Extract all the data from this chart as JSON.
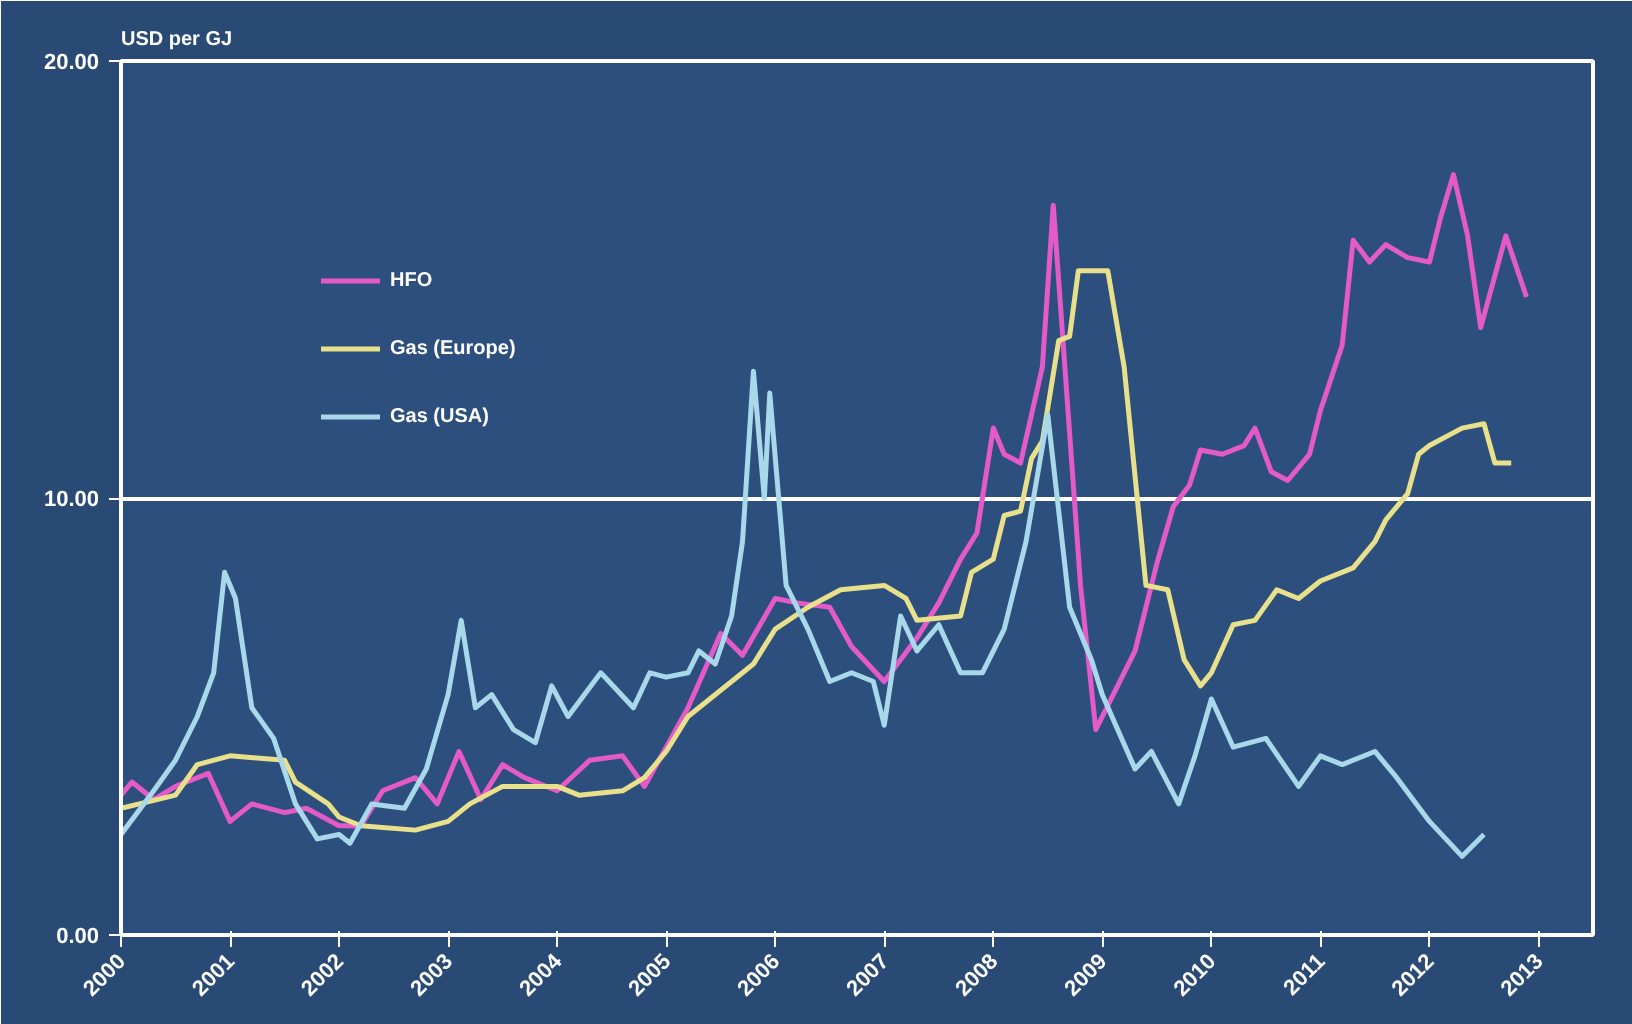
{
  "chart_data": {
    "type": "line",
    "ylabel": "USD per GJ",
    "xlim": [
      2000,
      2013.5
    ],
    "xticks": [
      2000,
      2001,
      2002,
      2003,
      2004,
      2005,
      2006,
      2007,
      2008,
      2009,
      2010,
      2011,
      2012,
      2013
    ],
    "ylim": [
      0,
      20
    ],
    "yticks": [
      {
        "value": 0,
        "label": "0.00"
      },
      {
        "value": 10,
        "label": "10.00"
      },
      {
        "value": 20,
        "label": "20.00"
      }
    ],
    "grid": "y",
    "legend": "top left",
    "marker": "none",
    "line_style": "solid",
    "series": [
      {
        "name": "HFO",
        "color": "#e45ac8",
        "x": [
          2000,
          2000.1,
          2000.3,
          2000.5,
          2000.8,
          2001.0,
          2001.2,
          2001.5,
          2001.7,
          2002.0,
          2002.2,
          2002.4,
          2002.7,
          2002.9,
          2003.1,
          2003.3,
          2003.5,
          2003.7,
          2004.0,
          2004.3,
          2004.6,
          2004.8,
          2005.0,
          2005.2,
          2005.5,
          2005.7,
          2006.0,
          2006.2,
          2006.5,
          2006.7,
          2007.0,
          2007.3,
          2007.5,
          2007.7,
          2007.85,
          2008.0,
          2008.1,
          2008.25,
          2008.45,
          2008.55,
          2008.8,
          2008.94,
          2009.1,
          2009.3,
          2009.5,
          2009.65,
          2009.8,
          2009.9,
          2010.1,
          2010.3,
          2010.4,
          2010.55,
          2010.7,
          2010.9,
          2011.0,
          2011.2,
          2011.3,
          2011.45,
          2011.6,
          2011.8,
          2012.0,
          2012.1,
          2012.22,
          2012.35,
          2012.47,
          2012.7,
          2012.89
        ],
        "values": [
          3.2,
          3.5,
          3.1,
          3.4,
          3.7,
          2.6,
          3.0,
          2.8,
          2.9,
          2.5,
          2.5,
          3.3,
          3.6,
          3.0,
          4.2,
          3.1,
          3.9,
          3.6,
          3.3,
          4.0,
          4.1,
          3.4,
          4.3,
          5.2,
          6.9,
          6.4,
          7.7,
          7.6,
          7.5,
          6.6,
          5.8,
          6.8,
          7.6,
          8.6,
          9.2,
          11.6,
          11.0,
          10.8,
          13.0,
          16.7,
          8.0,
          4.7,
          5.5,
          6.5,
          8.5,
          9.8,
          10.3,
          11.1,
          11.0,
          11.2,
          11.6,
          10.6,
          10.4,
          11.0,
          12.0,
          13.5,
          15.9,
          15.4,
          15.8,
          15.5,
          15.4,
          16.4,
          17.4,
          16.0,
          13.9,
          16.0,
          14.6
        ]
      },
      {
        "name": "Gas (Europe)",
        "color": "#e8e08a",
        "x": [
          2000,
          2000.5,
          2000.7,
          2001.0,
          2001.5,
          2001.6,
          2001.9,
          2002.0,
          2002.2,
          2002.7,
          2003.0,
          2003.2,
          2003.5,
          2004.0,
          2004.2,
          2004.6,
          2004.8,
          2005.0,
          2005.2,
          2005.5,
          2005.8,
          2006.0,
          2006.3,
          2006.6,
          2007.0,
          2007.2,
          2007.3,
          2007.7,
          2007.8,
          2008.0,
          2008.1,
          2008.25,
          2008.35,
          2008.45,
          2008.6,
          2008.7,
          2008.78,
          2009.05,
          2009.2,
          2009.4,
          2009.6,
          2009.75,
          2009.9,
          2010.0,
          2010.2,
          2010.4,
          2010.6,
          2010.8,
          2011.0,
          2011.3,
          2011.5,
          2011.6,
          2011.8,
          2011.9,
          2012.0,
          2012.3,
          2012.5,
          2012.6,
          2012.75
        ],
        "values": [
          2.9,
          3.2,
          3.9,
          4.1,
          4.0,
          3.5,
          3.0,
          2.7,
          2.5,
          2.4,
          2.6,
          3.0,
          3.4,
          3.4,
          3.2,
          3.3,
          3.6,
          4.2,
          5.0,
          5.6,
          6.2,
          7.0,
          7.5,
          7.9,
          8.0,
          7.7,
          7.2,
          7.3,
          8.3,
          8.6,
          9.6,
          9.7,
          10.9,
          11.3,
          13.6,
          13.7,
          15.2,
          15.2,
          13.0,
          8.0,
          7.9,
          6.3,
          5.7,
          6.0,
          7.1,
          7.2,
          7.9,
          7.7,
          8.1,
          8.4,
          9.0,
          9.5,
          10.1,
          11.0,
          11.2,
          11.6,
          11.7,
          10.8,
          10.8
        ]
      },
      {
        "name": "Gas (USA)",
        "color": "#a8d8ea",
        "x": [
          2000,
          2000.3,
          2000.5,
          2000.7,
          2000.85,
          2000.95,
          2001.05,
          2001.2,
          2001.4,
          2001.6,
          2001.8,
          2002.0,
          2002.1,
          2002.3,
          2002.6,
          2002.8,
          2003.0,
          2003.12,
          2003.25,
          2003.4,
          2003.6,
          2003.8,
          2003.95,
          2004.1,
          2004.4,
          2004.7,
          2004.85,
          2005.0,
          2005.2,
          2005.3,
          2005.45,
          2005.6,
          2005.7,
          2005.8,
          2005.9,
          2005.95,
          2006.1,
          2006.3,
          2006.5,
          2006.7,
          2006.9,
          2007.0,
          2007.15,
          2007.3,
          2007.5,
          2007.7,
          2007.9,
          2008.1,
          2008.3,
          2008.5,
          2008.7,
          2008.9,
          2009.0,
          2009.3,
          2009.45,
          2009.7,
          2009.85,
          2010.0,
          2010.2,
          2010.5,
          2010.8,
          2011.0,
          2011.2,
          2011.5,
          2011.7,
          2012.0,
          2012.3,
          2012.5
        ],
        "values": [
          2.3,
          3.3,
          4.0,
          5.0,
          6.0,
          8.3,
          7.7,
          5.2,
          4.5,
          3.0,
          2.2,
          2.3,
          2.1,
          3.0,
          2.9,
          3.8,
          5.5,
          7.2,
          5.2,
          5.5,
          4.7,
          4.4,
          5.7,
          5.0,
          6.0,
          5.2,
          6.0,
          5.9,
          6.0,
          6.5,
          6.2,
          7.3,
          9.0,
          12.9,
          10.0,
          12.4,
          8.0,
          7.0,
          5.8,
          6.0,
          5.8,
          4.8,
          7.3,
          6.5,
          7.1,
          6.0,
          6.0,
          7.0,
          9.0,
          11.9,
          7.5,
          6.3,
          5.5,
          3.8,
          4.2,
          3.0,
          4.1,
          5.4,
          4.3,
          4.5,
          3.4,
          4.1,
          3.9,
          4.2,
          3.6,
          2.6,
          1.8,
          2.3
        ]
      }
    ]
  }
}
